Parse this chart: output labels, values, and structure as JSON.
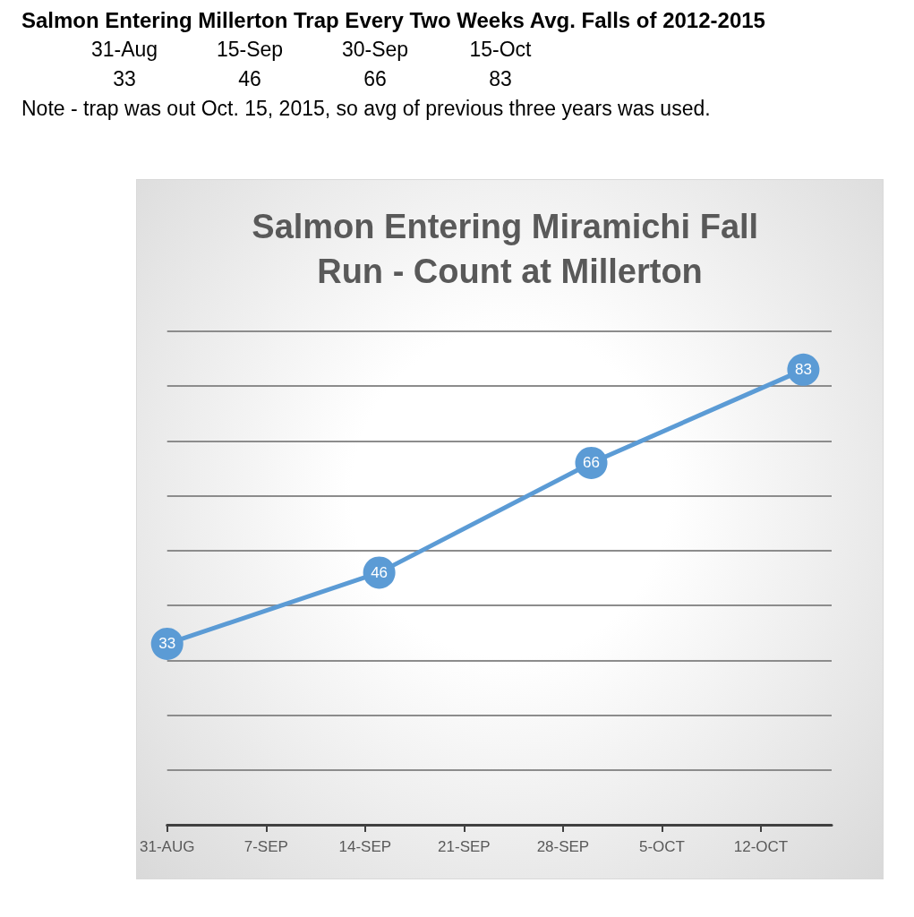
{
  "chart_data": {
    "type": "line",
    "title": "Salmon Entering Miramichi Fall Run - Count at Millerton",
    "annotations": [
      "Salmon Entering Millerton Trap Every Two Weeks Avg. Falls of 2012-2015",
      "31-Aug",
      "15-Sep",
      "30-Sep",
      "15-Oct",
      "33",
      "46",
      "66",
      "83",
      "Note - trap was out Oct. 15, 2015, so avg of previous three years was used."
    ],
    "x": [
      "--08-31",
      "--09-15",
      "--09-30",
      "--10-15"
    ],
    "series": [
      {
        "color": "#5b9bd5",
        "values": [
          33,
          46,
          66,
          83
        ]
      }
    ],
    "xlim": [
      "--08-31",
      "--10-17"
    ],
    "xticks": [
      {
        "value": "--08-31",
        "label": "31-AUG"
      },
      {
        "value": "--09-07",
        "label": "7-SEP"
      },
      {
        "value": "--09-14",
        "label": "14-SEP"
      },
      {
        "value": "--09-21",
        "label": "21-SEP"
      },
      {
        "value": "--09-28",
        "label": "28-SEP"
      },
      {
        "value": "--10-05",
        "label": "5-OCT"
      },
      {
        "value": "--10-12",
        "label": "12-OCT"
      }
    ],
    "ylim": [
      0,
      90
    ],
    "yticks": [
      {
        "value": 0,
        "label": null
      },
      {
        "value": 10,
        "label": null
      },
      {
        "value": 20,
        "label": null
      },
      {
        "value": 30,
        "label": null
      },
      {
        "value": 40,
        "label": null
      },
      {
        "value": 50,
        "label": null
      },
      {
        "value": 60,
        "label": null
      },
      {
        "value": 70,
        "label": null
      },
      {
        "value": 80,
        "label": null
      },
      {
        "value": 90,
        "label": null
      }
    ],
    "tick_labels": "x",
    "grid": "y",
    "marker": "circle",
    "line_style": "solid",
    "data_labels": true
  }
}
